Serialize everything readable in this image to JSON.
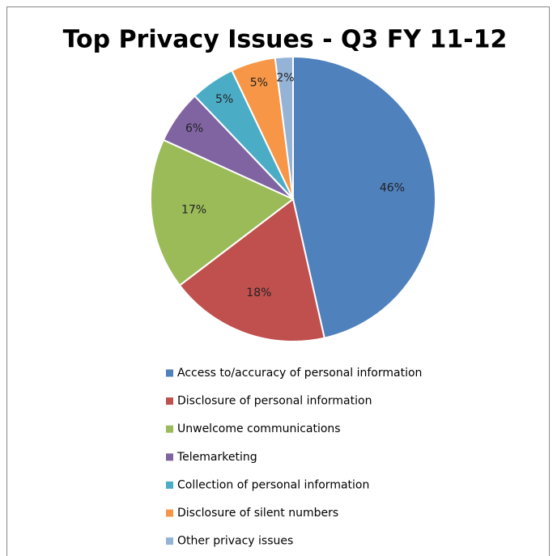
{
  "chart_data": {
    "type": "pie",
    "title": "Top Privacy Issues - Q3 FY 11-12",
    "categories": [
      "Access to/accuracy of personal information",
      "Disclosure of personal information",
      "Unwelcome communications",
      "Telemarketing",
      "Collection of personal information",
      "Disclosure of silent numbers",
      "Other privacy issues"
    ],
    "values": [
      46,
      18,
      17,
      6,
      5,
      5,
      2
    ],
    "value_labels": [
      "46%",
      "18%",
      "17%",
      "6%",
      "5%",
      "5%",
      "2%"
    ],
    "colors": [
      "#4f81bd",
      "#c0504d",
      "#9bbb59",
      "#8064a2",
      "#4bacc6",
      "#f79646",
      "#95b3d7"
    ],
    "legend": "bottom"
  }
}
